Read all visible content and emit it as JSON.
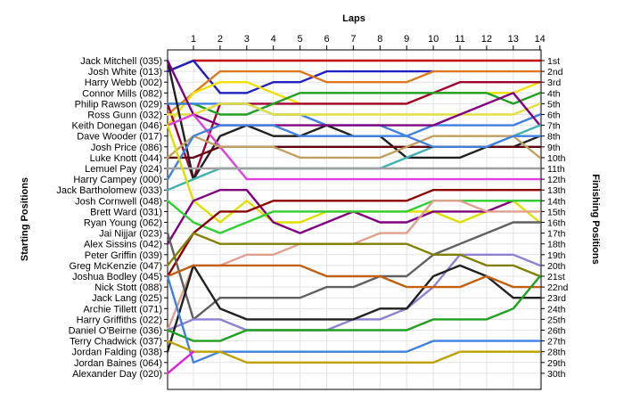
{
  "chart_data": {
    "type": "line",
    "title": "Laps",
    "ylabel_left": "Starting Positions",
    "ylabel_right": "Finishing Positions",
    "laps": [
      1,
      2,
      3,
      4,
      5,
      6,
      7,
      8,
      9,
      10,
      11,
      12,
      13,
      14
    ],
    "x_ticks": [
      "1",
      "2",
      "3",
      "4",
      "5",
      "6",
      "7",
      "8",
      "9",
      "10",
      "11",
      "12",
      "13",
      "14"
    ],
    "position_labels": [
      "1st",
      "2nd",
      "3rd",
      "4th",
      "5th",
      "6th",
      "7th",
      "8th",
      "9th",
      "10th",
      "11th",
      "12th",
      "13th",
      "14th",
      "15th",
      "16th",
      "17th",
      "18th",
      "19th",
      "20th",
      "21st",
      "22nd",
      "23rd",
      "24th",
      "25th",
      "26th",
      "27th",
      "28th",
      "29th",
      "30th"
    ],
    "drivers": [
      "Jack Mitchell (035)",
      "Josh White (013)",
      "Harry Webb (002)",
      "Connor Mills (082)",
      "Philip Rawson (029)",
      "Ross Gunn (032)",
      "Keith Donegan (046)",
      "Dave Wooder (017)",
      "Josh Price (086)",
      "Luke Knott (044)",
      "Lemuel Pay (024)",
      "Harry Campey (000)",
      "Jack Bartholomew (033)",
      "Josh Cornwell (048)",
      "Brett Ward (031)",
      "Ryan Young (062)",
      "Jai Nijjar (023)",
      "Alex Sissins (042)",
      "Peter Griffin (039)",
      "Greg McKenzie (047)",
      "Joshua Bodley (045)",
      "Nick Stott (088)",
      "Jack Lang (025)",
      "Archie Tillett (071)",
      "Harry Griffiths (022)",
      "Daniel O'Beirne (036)",
      "Terry Chadwick (037)",
      "Jordan Falding (038)",
      "Jordan Baines (064)",
      "Alexander Day (020)"
    ],
    "series": [
      {
        "color": "#c00000",
        "positions": [
          2,
          1,
          1,
          1,
          1,
          1,
          1,
          1,
          1,
          1,
          1,
          1,
          1,
          1,
          1
        ]
      },
      {
        "color": "#2020c0",
        "positions": [
          2,
          1,
          4,
          4,
          3,
          3,
          2,
          2,
          2,
          2,
          2
        ]
      },
      {
        "color": "#e07820",
        "positions": [
          6,
          4,
          2,
          2,
          2,
          2,
          3,
          3,
          3,
          3,
          2,
          2,
          2,
          2,
          2
        ]
      },
      {
        "color": "#f0e000",
        "positions": [
          7,
          4,
          3,
          3,
          4,
          5,
          5,
          5,
          5,
          5,
          4,
          4,
          4,
          4,
          3
        ]
      },
      {
        "color": "#a00030",
        "positions": [
          5,
          12,
          5,
          5,
          5,
          5,
          5,
          5,
          5,
          5,
          4,
          3,
          3,
          3,
          3
        ]
      },
      {
        "color": "#20a020",
        "positions": [
          5,
          5,
          6,
          6,
          5,
          4,
          4,
          4,
          4,
          4,
          4,
          4,
          4,
          5,
          4
        ]
      },
      {
        "color": "#4080e0",
        "positions": [
          5,
          5,
          5,
          5,
          6,
          6,
          7,
          7,
          7,
          8,
          7,
          7,
          7,
          7,
          6
        ]
      },
      {
        "color": "#e0e040",
        "positions": [
          6,
          6,
          5,
          5,
          6,
          6,
          6,
          6,
          6,
          6,
          6,
          6,
          6,
          6,
          5
        ]
      },
      {
        "color": "#202020",
        "positions": [
          1,
          12,
          8,
          7,
          8,
          8,
          7,
          8,
          8,
          10,
          10,
          10,
          9,
          9,
          8
        ]
      },
      {
        "color": "#800080",
        "positions": [
          1,
          6,
          7,
          7,
          7,
          7,
          7,
          7,
          7,
          7,
          7,
          6,
          5,
          4,
          7
        ]
      },
      {
        "color": "#e040e0",
        "positions": [
          7,
          6,
          9,
          12,
          12,
          12,
          12,
          12,
          12,
          12,
          12,
          12,
          12,
          12,
          12
        ]
      },
      {
        "color": "#40b0b0",
        "positions": [
          13,
          12,
          11,
          11,
          11,
          11,
          11,
          11,
          11,
          10,
          9,
          9,
          9,
          8,
          7
        ]
      },
      {
        "color": "#600010",
        "positions": [
          10,
          10,
          9,
          9,
          9,
          9,
          9,
          9,
          9,
          9,
          9,
          9,
          9,
          9,
          9
        ]
      },
      {
        "color": "#c0a060",
        "positions": [
          10,
          8,
          9,
          9,
          9,
          10,
          10,
          10,
          10,
          9,
          8,
          8,
          8,
          8,
          10
        ]
      },
      {
        "color": "#4080e0",
        "positions": [
          12,
          8,
          7,
          7,
          7,
          8,
          8,
          8,
          8,
          8,
          9,
          9,
          9,
          8,
          8
        ]
      },
      {
        "color": "#a0a0a0",
        "positions": [
          11,
          11,
          11,
          11,
          11,
          11,
          11,
          11,
          11,
          11,
          11,
          11,
          11,
          11,
          11
        ]
      },
      {
        "color": "#e0e000",
        "positions": [
          7,
          14,
          16,
          14,
          16,
          16,
          15,
          15,
          15,
          15,
          15,
          16,
          15,
          14,
          16
        ]
      },
      {
        "color": "#800080",
        "positions": [
          18,
          14,
          13,
          13,
          16,
          17,
          16,
          15,
          16,
          16,
          15,
          15,
          15,
          14,
          14
        ]
      },
      {
        "color": "#30d030",
        "positions": [
          14,
          16,
          17,
          16,
          15,
          15,
          15,
          15,
          15,
          15,
          14,
          14,
          14,
          14,
          14
        ]
      },
      {
        "color": "#e0a090",
        "positions": [
          26,
          20,
          20,
          19,
          19,
          18,
          18,
          18,
          17,
          17,
          14,
          14,
          15,
          15,
          15
        ]
      },
      {
        "color": "#8b0000",
        "positions": [
          21,
          17,
          15,
          15,
          14,
          14,
          14,
          14,
          14,
          14,
          13,
          13,
          13,
          13,
          13
        ]
      },
      {
        "color": "#606060",
        "positions": [
          17,
          25,
          23,
          23,
          23,
          23,
          22,
          22,
          21,
          21,
          19,
          18,
          17,
          16,
          16
        ]
      },
      {
        "color": "#9080d0",
        "positions": [
          26,
          25,
          25,
          26,
          26,
          26,
          26,
          25,
          25,
          24,
          22,
          19,
          19,
          19,
          20
        ]
      },
      {
        "color": "#808000",
        "positions": [
          20,
          17,
          18,
          18,
          18,
          18,
          18,
          18,
          18,
          18,
          19,
          19,
          20,
          20,
          21
        ]
      },
      {
        "color": "#202020",
        "positions": [
          28,
          20,
          24,
          25,
          25,
          25,
          25,
          25,
          24,
          24,
          21,
          20,
          21,
          23,
          23
        ]
      },
      {
        "color": "#c06010",
        "positions": [
          21,
          20,
          20,
          20,
          20,
          20,
          21,
          21,
          21,
          22,
          22,
          22,
          21,
          22,
          22
        ]
      },
      {
        "color": "#20a020",
        "positions": [
          26,
          27,
          27,
          26,
          26,
          26,
          26,
          26,
          26,
          26,
          25,
          25,
          25,
          24,
          21
        ]
      },
      {
        "color": "#4080e0",
        "positions": [
          21,
          29,
          28,
          28,
          28,
          28,
          28,
          28,
          28,
          28,
          27,
          27,
          27,
          27,
          27
        ]
      },
      {
        "color": "#c0a000",
        "positions": [
          27,
          28,
          28,
          29,
          29,
          29,
          29,
          29,
          29,
          29,
          29,
          28,
          28,
          28,
          28
        ]
      },
      {
        "color": "#e020e0",
        "positions": [
          30,
          28
        ]
      }
    ]
  }
}
